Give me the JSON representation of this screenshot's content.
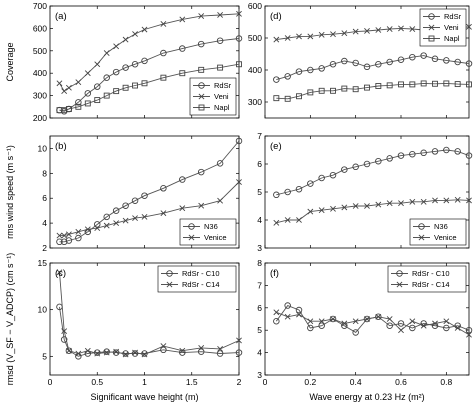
{
  "chart_data": [
    {
      "type": "line",
      "panel_label": "(a)",
      "ylabel": "Coverage",
      "xlim": [
        0,
        2
      ],
      "ylim": [
        200,
        700
      ],
      "xticks": [
        0,
        0.5,
        1,
        1.5,
        2
      ],
      "yticks": [
        200,
        300,
        400,
        500,
        600,
        700
      ],
      "show_xticklabels": false,
      "legend": "bottom-right",
      "series": [
        {
          "name": "RdSr",
          "marker": "circle",
          "x": [
            0.1,
            0.15,
            0.2,
            0.3,
            0.4,
            0.5,
            0.6,
            0.7,
            0.8,
            0.9,
            1.0,
            1.2,
            1.4,
            1.6,
            1.8,
            2.0
          ],
          "y": [
            235,
            230,
            240,
            270,
            310,
            340,
            380,
            405,
            425,
            440,
            455,
            490,
            510,
            530,
            545,
            555
          ]
        },
        {
          "name": "Veni",
          "marker": "x",
          "x": [
            0.1,
            0.15,
            0.2,
            0.3,
            0.4,
            0.5,
            0.6,
            0.7,
            0.8,
            0.9,
            1.0,
            1.2,
            1.4,
            1.6,
            1.8,
            2.0
          ],
          "y": [
            355,
            320,
            335,
            360,
            400,
            440,
            490,
            520,
            550,
            575,
            595,
            620,
            640,
            655,
            660,
            665
          ]
        },
        {
          "name": "Napl",
          "marker": "square",
          "x": [
            0.1,
            0.15,
            0.2,
            0.3,
            0.4,
            0.5,
            0.6,
            0.7,
            0.8,
            0.9,
            1.0,
            1.2,
            1.4,
            1.6,
            1.8,
            2.0
          ],
          "y": [
            235,
            235,
            240,
            250,
            265,
            280,
            300,
            320,
            335,
            345,
            355,
            380,
            400,
            415,
            425,
            440
          ]
        }
      ]
    },
    {
      "type": "line",
      "panel_label": "(b)",
      "ylabel": "rms wind speed (m s⁻¹)",
      "xlim": [
        0,
        2
      ],
      "ylim": [
        2,
        11
      ],
      "xticks": [
        0,
        0.5,
        1,
        1.5,
        2
      ],
      "yticks": [
        2,
        4,
        6,
        8,
        10
      ],
      "show_xticklabels": false,
      "legend": "bottom-right",
      "series": [
        {
          "name": "N36",
          "marker": "circle",
          "x": [
            0.1,
            0.15,
            0.2,
            0.3,
            0.4,
            0.5,
            0.6,
            0.7,
            0.8,
            0.9,
            1.0,
            1.2,
            1.4,
            1.6,
            1.8,
            2.0
          ],
          "y": [
            2.5,
            2.5,
            2.6,
            2.8,
            3.3,
            3.9,
            4.5,
            5.0,
            5.4,
            5.8,
            6.2,
            6.8,
            7.5,
            8.1,
            8.8,
            10.6
          ]
        },
        {
          "name": "Venice",
          "marker": "x",
          "x": [
            0.1,
            0.15,
            0.2,
            0.3,
            0.4,
            0.5,
            0.6,
            0.7,
            0.8,
            0.9,
            1.0,
            1.2,
            1.4,
            1.6,
            1.8,
            2.0
          ],
          "y": [
            3.0,
            3.0,
            3.1,
            3.3,
            3.5,
            3.6,
            3.8,
            4.0,
            4.2,
            4.4,
            4.5,
            4.8,
            5.2,
            5.4,
            5.8,
            7.3
          ]
        }
      ]
    },
    {
      "type": "line",
      "panel_label": "(c)",
      "ylabel": "rmsd (V_SF − V_ADCP) (cm s⁻¹)",
      "xlabel": "Significant wave height (m)",
      "xlim": [
        0,
        2
      ],
      "ylim": [
        3,
        15
      ],
      "xticks": [
        0,
        0.5,
        1,
        1.5,
        2
      ],
      "yticks": [
        5,
        10,
        15
      ],
      "xticklabels": [
        "0",
        "0.5",
        "1",
        "1.5",
        "2"
      ],
      "legend": "top-right",
      "series": [
        {
          "name": "RdSr - C10",
          "marker": "circle",
          "x": [
            0.1,
            0.15,
            0.2,
            0.3,
            0.4,
            0.5,
            0.6,
            0.7,
            0.8,
            0.9,
            1.0,
            1.2,
            1.4,
            1.6,
            1.8,
            2.0
          ],
          "y": [
            10.3,
            6.8,
            5.6,
            5.0,
            5.3,
            5.4,
            5.5,
            5.4,
            5.3,
            5.3,
            5.3,
            5.7,
            5.4,
            5.5,
            5.3,
            5.4
          ]
        },
        {
          "name": "RdSr - C14",
          "marker": "x",
          "x": [
            0.1,
            0.15,
            0.2,
            0.3,
            0.4,
            0.5,
            0.6,
            0.7,
            0.8,
            0.9,
            1.0,
            1.2,
            1.4,
            1.6,
            1.8,
            2.0
          ],
          "y": [
            14.0,
            7.7,
            5.6,
            5.3,
            5.6,
            5.3,
            5.4,
            5.5,
            5.2,
            5.4,
            5.2,
            6.1,
            5.6,
            5.9,
            5.8,
            6.7
          ]
        }
      ]
    },
    {
      "type": "line",
      "panel_label": "(d)",
      "xlim": [
        0,
        0.9
      ],
      "ylim": [
        250,
        600
      ],
      "xticks": [
        0,
        0.2,
        0.4,
        0.6,
        0.8
      ],
      "yticks": [
        300,
        400,
        500,
        600
      ],
      "show_xticklabels": false,
      "legend": "top-right",
      "series": [
        {
          "name": "RdSr",
          "marker": "circle",
          "x": [
            0.05,
            0.1,
            0.15,
            0.2,
            0.25,
            0.3,
            0.35,
            0.4,
            0.45,
            0.5,
            0.55,
            0.6,
            0.65,
            0.7,
            0.75,
            0.8,
            0.85,
            0.9
          ],
          "y": [
            370,
            380,
            395,
            400,
            405,
            418,
            428,
            422,
            410,
            418,
            425,
            432,
            440,
            445,
            435,
            430,
            425,
            420
          ]
        },
        {
          "name": "Veni",
          "marker": "x",
          "x": [
            0.05,
            0.1,
            0.15,
            0.2,
            0.25,
            0.3,
            0.35,
            0.4,
            0.45,
            0.5,
            0.55,
            0.6,
            0.65,
            0.7,
            0.75,
            0.8,
            0.85,
            0.9
          ],
          "y": [
            495,
            500,
            505,
            505,
            510,
            512,
            515,
            520,
            522,
            525,
            528,
            530,
            528,
            525,
            527,
            530,
            532,
            535
          ]
        },
        {
          "name": "Napl",
          "marker": "square",
          "x": [
            0.05,
            0.1,
            0.15,
            0.2,
            0.25,
            0.3,
            0.35,
            0.4,
            0.45,
            0.5,
            0.55,
            0.6,
            0.65,
            0.7,
            0.75,
            0.8,
            0.85,
            0.9
          ],
          "y": [
            312,
            310,
            318,
            330,
            335,
            335,
            342,
            340,
            345,
            350,
            352,
            355,
            355,
            358,
            357,
            358,
            356,
            355
          ]
        }
      ]
    },
    {
      "type": "line",
      "panel_label": "(e)",
      "xlim": [
        0,
        0.9
      ],
      "ylim": [
        3,
        7
      ],
      "xticks": [
        0,
        0.2,
        0.4,
        0.6,
        0.8
      ],
      "yticks": [
        3,
        4,
        5,
        6,
        7
      ],
      "show_xticklabels": false,
      "legend": "bottom-right",
      "series": [
        {
          "name": "N36",
          "marker": "circle",
          "x": [
            0.05,
            0.1,
            0.15,
            0.2,
            0.25,
            0.3,
            0.35,
            0.4,
            0.45,
            0.5,
            0.55,
            0.6,
            0.65,
            0.7,
            0.75,
            0.8,
            0.85,
            0.9
          ],
          "y": [
            4.9,
            5.0,
            5.1,
            5.3,
            5.5,
            5.6,
            5.8,
            5.9,
            6.0,
            6.1,
            6.2,
            6.3,
            6.35,
            6.4,
            6.45,
            6.5,
            6.45,
            6.3
          ]
        },
        {
          "name": "Venice",
          "marker": "x",
          "x": [
            0.05,
            0.1,
            0.15,
            0.2,
            0.25,
            0.3,
            0.35,
            0.4,
            0.45,
            0.5,
            0.55,
            0.6,
            0.65,
            0.7,
            0.75,
            0.8,
            0.85,
            0.9
          ],
          "y": [
            3.9,
            4.0,
            4.0,
            4.3,
            4.35,
            4.4,
            4.45,
            4.5,
            4.5,
            4.55,
            4.6,
            4.6,
            4.65,
            4.65,
            4.7,
            4.7,
            4.72,
            4.7
          ]
        }
      ]
    },
    {
      "type": "line",
      "panel_label": "(f)",
      "xlabel": "Wave energy at 0.23 Hz (m²)",
      "xlim": [
        0,
        0.9
      ],
      "ylim": [
        3,
        8
      ],
      "xticks": [
        0,
        0.2,
        0.4,
        0.6,
        0.8
      ],
      "yticks": [
        3,
        4,
        5,
        6,
        7,
        8
      ],
      "xticklabels": [
        "0",
        "0.2",
        "0.4",
        "0.6",
        "0.8"
      ],
      "legend": "top-right",
      "series": [
        {
          "name": "RdSr - C10",
          "marker": "circle",
          "x": [
            0.05,
            0.1,
            0.15,
            0.2,
            0.25,
            0.3,
            0.35,
            0.4,
            0.45,
            0.5,
            0.55,
            0.6,
            0.65,
            0.7,
            0.75,
            0.8,
            0.85,
            0.9
          ],
          "y": [
            5.4,
            6.1,
            5.9,
            5.1,
            5.2,
            5.5,
            5.2,
            4.9,
            5.5,
            5.6,
            5.2,
            5.3,
            5.1,
            5.3,
            5.2,
            5.1,
            5.2,
            5.0
          ]
        },
        {
          "name": "RdSr - C14",
          "marker": "x",
          "x": [
            0.05,
            0.1,
            0.15,
            0.2,
            0.25,
            0.3,
            0.35,
            0.4,
            0.45,
            0.5,
            0.55,
            0.6,
            0.65,
            0.7,
            0.75,
            0.8,
            0.85,
            0.9
          ],
          "y": [
            5.8,
            5.6,
            5.7,
            5.4,
            5.4,
            5.5,
            5.3,
            5.4,
            5.5,
            5.6,
            5.5,
            5.0,
            5.4,
            5.2,
            5.3,
            5.4,
            5.1,
            4.8
          ]
        }
      ]
    }
  ]
}
